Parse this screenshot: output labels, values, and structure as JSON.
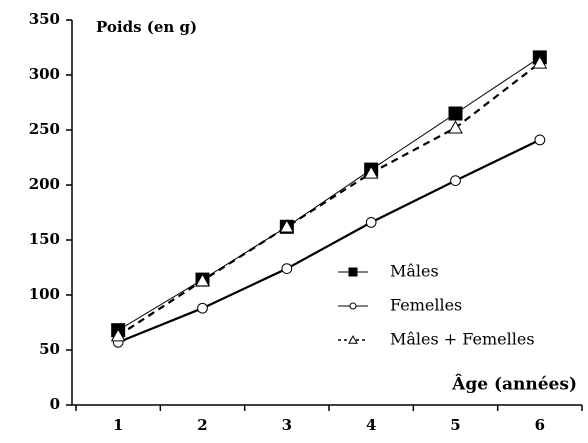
{
  "chart_data": {
    "type": "line",
    "y_label": "Poids (en g)",
    "x_label": "Âge (années)",
    "categories": [
      "1",
      "2",
      "3",
      "4",
      "5",
      "6"
    ],
    "series": [
      {
        "name": "Mâles",
        "color": "#000000",
        "marker": "square",
        "dash": false,
        "line_width": 1,
        "values": [
          68,
          114,
          162,
          214,
          265,
          316
        ]
      },
      {
        "name": "Femelles",
        "color": "#000000",
        "marker": "circle",
        "dash": false,
        "line_width": 2.2,
        "values": [
          57,
          88,
          124,
          166,
          204,
          241
        ]
      },
      {
        "name": "Mâles + Femelles",
        "color": "#000000",
        "marker": "triangle",
        "dash": true,
        "line_width": 2.2,
        "values": [
          63,
          113,
          162,
          211,
          252,
          311
        ]
      }
    ],
    "ylim": [
      0,
      350
    ],
    "yticks": [
      0,
      50,
      100,
      150,
      200,
      250,
      300,
      350
    ],
    "grid": false
  }
}
